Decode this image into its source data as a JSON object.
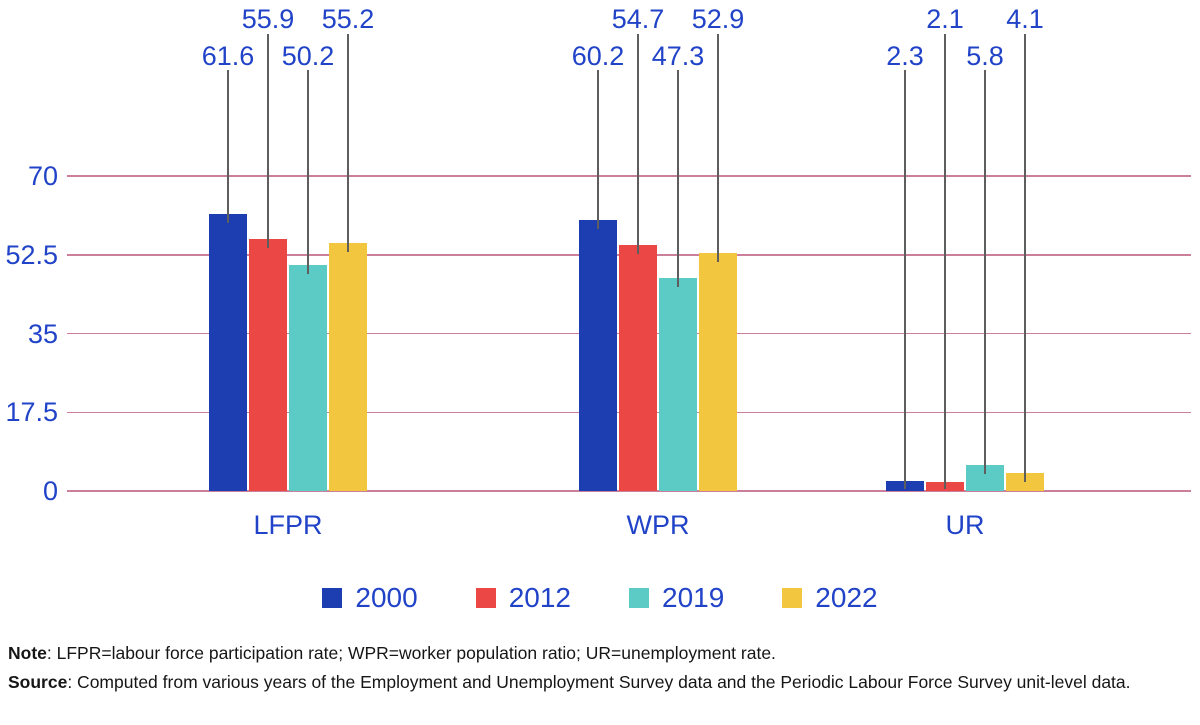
{
  "chart_data": {
    "type": "bar",
    "title": "",
    "categories": [
      "LFPR",
      "WPR",
      "UR"
    ],
    "series": [
      {
        "name": "2000",
        "color": "#1C3EB1",
        "values": [
          61.6,
          60.2,
          2.3
        ]
      },
      {
        "name": "2012",
        "color": "#EB4744",
        "values": [
          55.9,
          54.7,
          2.1
        ]
      },
      {
        "name": "2019",
        "color": "#5DCBC5",
        "values": [
          50.2,
          47.3,
          5.8
        ]
      },
      {
        "name": "2022",
        "color": "#F3C63F",
        "values": [
          55.2,
          52.9,
          4.1
        ]
      }
    ],
    "y_ticks": [
      0,
      17.5,
      35,
      52.5,
      70
    ],
    "ylim": [
      0,
      70
    ],
    "xlabel": "",
    "ylabel": "",
    "grid": "horizontal",
    "gridline_color": "#CC7F9B",
    "axis_label_color": "#2143C8",
    "data_label_color": "#2143C8",
    "callout_line_color": "#5E5E5E",
    "legend_position": "bottom",
    "legend_entries": [
      "2000",
      "2012",
      "2019",
      "2022"
    ],
    "data_labels": true
  },
  "notes": {
    "note_label": "Note",
    "note_text": ": LFPR=labour force participation rate; WPR=worker population ratio; UR=unemployment rate.",
    "source_label": "Source",
    "source_text": ": Computed from various years of the Employment and Unemployment Survey data and the Periodic Labour Force Survey unit-level data."
  }
}
